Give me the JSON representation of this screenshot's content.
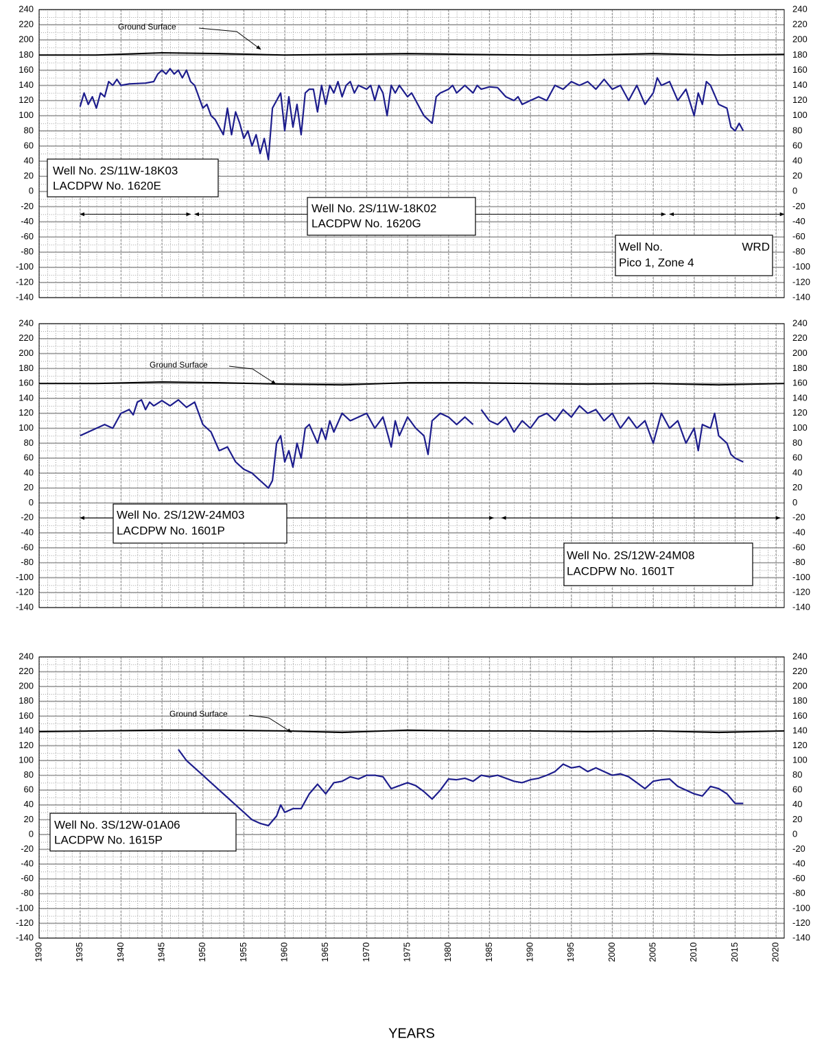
{
  "chart_data": [
    {
      "type": "line",
      "xlim": [
        1930,
        2021
      ],
      "ylim": [
        -140,
        240
      ],
      "xticks": [
        1930,
        1935,
        1940,
        1945,
        1950,
        1955,
        1960,
        1965,
        1970,
        1975,
        1980,
        1985,
        1990,
        1995,
        2000,
        2005,
        2010,
        2015,
        2020
      ],
      "yticks": [
        -140,
        -120,
        -100,
        -80,
        -60,
        -40,
        -20,
        0,
        20,
        40,
        60,
        80,
        100,
        120,
        140,
        160,
        180,
        200,
        220,
        240
      ],
      "grid": true,
      "color": "#1c1c8c",
      "x": [
        1935,
        1935.5,
        1936,
        1936.5,
        1937,
        1937.5,
        1938,
        1938.5,
        1939,
        1939.5,
        1940,
        1941,
        1943,
        1944,
        1944.5,
        1945,
        1945.5,
        1946,
        1946.5,
        1947,
        1947.5,
        1948,
        1948.5,
        1949,
        1949.5,
        1950,
        1950.5,
        1951,
        1951.5,
        1952,
        1952.5,
        1953,
        1953.5,
        1954,
        1954.5,
        1955,
        1955.5,
        1956,
        1956.5,
        1957,
        1957.5,
        1958,
        1958.5,
        1959,
        1959.5,
        1960,
        1960.5,
        1961,
        1961.5,
        1962,
        1962.5,
        1963,
        1963.5,
        1964,
        1964.5,
        1965,
        1965.5,
        1966,
        1966.5,
        1967,
        1967.5,
        1968,
        1968.5,
        1969,
        1970,
        1970.5,
        1971,
        1971.5,
        1972,
        1972.5,
        1973,
        1973.5,
        1974,
        1975,
        1975.5,
        1976,
        1976.5,
        1977,
        1977.5,
        1978,
        1978.5,
        1979,
        1980,
        1980.5,
        1981,
        1982,
        1983,
        1983.5,
        1984,
        1985,
        1986,
        1987,
        1988,
        1988.5,
        1989,
        1990,
        1991,
        1992,
        1993,
        1994,
        1995,
        1996,
        1997,
        1998,
        1999,
        2000,
        2001,
        2002,
        2003,
        2004,
        2005,
        2005.5,
        2006,
        2007,
        2008,
        2009,
        2010,
        2010.5,
        2011,
        2011.5,
        2012,
        2013,
        2014,
        2014.5,
        2015,
        2015.5,
        2016
      ],
      "values": [
        112,
        130,
        115,
        125,
        110,
        130,
        125,
        145,
        140,
        148,
        140,
        142,
        143,
        145,
        155,
        160,
        155,
        162,
        155,
        160,
        150,
        160,
        145,
        140,
        125,
        110,
        115,
        100,
        95,
        85,
        75,
        110,
        75,
        105,
        90,
        70,
        80,
        60,
        75,
        50,
        70,
        42,
        110,
        120,
        130,
        80,
        125,
        85,
        115,
        75,
        130,
        135,
        135,
        105,
        140,
        115,
        140,
        130,
        145,
        125,
        140,
        145,
        130,
        140,
        135,
        140,
        120,
        140,
        130,
        100,
        140,
        130,
        140,
        125,
        130,
        120,
        110,
        100,
        95,
        90,
        125,
        130,
        135,
        140,
        130,
        140,
        130,
        140,
        135,
        138,
        137,
        125,
        120,
        125,
        115,
        120,
        125,
        120,
        140,
        135,
        145,
        140,
        145,
        135,
        148,
        135,
        140,
        120,
        140,
        115,
        130,
        150,
        140,
        145,
        120,
        135,
        100,
        130,
        115,
        145,
        140,
        115,
        110,
        85,
        80,
        90,
        80
      ],
      "ground_x": [
        1930,
        1937,
        1945,
        1952,
        1960,
        1967,
        1975,
        1982,
        1990,
        1997,
        2005,
        2013,
        2021
      ],
      "ground_values": [
        180,
        180,
        183,
        182,
        180,
        181,
        182,
        181,
        180,
        180,
        182,
        180,
        181
      ],
      "ground_label": "Ground Surface",
      "periods": [
        [
          1935,
          1948.5
        ],
        [
          1949,
          2006.5
        ],
        [
          2007,
          2021
        ]
      ],
      "period_level": -30,
      "labels": [
        [
          "Well No. 2S/11W-18K03",
          "LACDPW No. 1620E"
        ],
        [
          "Well No. 2S/11W-18K02",
          "LACDPW No. 1620G"
        ],
        [
          "Well No.",
          "WRD",
          "Pico 1, Zone 4"
        ]
      ]
    },
    {
      "type": "line",
      "xlim": [
        1930,
        2021
      ],
      "ylim": [
        -140,
        240
      ],
      "xticks": [
        1930,
        1935,
        1940,
        1945,
        1950,
        1955,
        1960,
        1965,
        1970,
        1975,
        1980,
        1985,
        1990,
        1995,
        2000,
        2005,
        2010,
        2015,
        2020
      ],
      "yticks": [
        -140,
        -120,
        -100,
        -80,
        -60,
        -40,
        -20,
        0,
        20,
        40,
        60,
        80,
        100,
        120,
        140,
        160,
        180,
        200,
        220,
        240
      ],
      "grid": true,
      "color": "#1c1c8c",
      "x": [
        1935,
        1938,
        1939,
        1940,
        1941,
        1941.5,
        1942,
        1942.5,
        1943,
        1943.5,
        1944,
        1945,
        1946,
        1947,
        1948,
        1949,
        1949.5,
        1950,
        1951,
        1952,
        1953,
        1954,
        1955,
        1956,
        1957,
        1957.5,
        1958,
        1958.5,
        1959,
        1959.5,
        1960,
        1960.5,
        1961,
        1961.5,
        1962,
        1962.5,
        1963,
        1964,
        1964.5,
        1965,
        1965.5,
        1966,
        1967,
        1968,
        1969,
        1970,
        1971,
        1972,
        1973,
        1973.5,
        1974,
        1975,
        1976,
        1977,
        1977.5,
        1978,
        1979,
        1980,
        1981,
        1982,
        1983,
        1983.5,
        1984,
        1985,
        1986,
        1987,
        1988,
        1989,
        1990,
        1991,
        1992,
        1993,
        1994,
        1995,
        1996,
        1997,
        1998,
        1999,
        2000,
        2001,
        2002,
        2003,
        2004,
        2005,
        2006,
        2007,
        2008,
        2009,
        2010,
        2010.5,
        2011,
        2012,
        2012.5,
        2013,
        2014,
        2014.5,
        2015,
        2016
      ],
      "values": [
        90,
        105,
        100,
        120,
        125,
        118,
        135,
        138,
        125,
        135,
        130,
        137,
        130,
        138,
        128,
        135,
        120,
        105,
        95,
        70,
        75,
        55,
        45,
        40,
        30,
        25,
        20,
        30,
        80,
        90,
        55,
        70,
        48,
        80,
        60,
        100,
        105,
        80,
        100,
        85,
        110,
        95,
        120,
        110,
        115,
        120,
        100,
        115,
        75,
        110,
        90,
        115,
        100,
        90,
        65,
        110,
        120,
        115,
        105,
        115,
        105,
        null,
        125,
        110,
        105,
        115,
        95,
        110,
        100,
        115,
        120,
        110,
        125,
        115,
        130,
        120,
        125,
        110,
        120,
        100,
        115,
        100,
        110,
        80,
        120,
        100,
        110,
        80,
        100,
        70,
        105,
        100,
        120,
        90,
        80,
        65,
        60,
        55
      ],
      "ground_x": [
        1930,
        1937,
        1945,
        1952,
        1960,
        1967,
        1975,
        1982,
        1990,
        1997,
        2005,
        2013,
        2021
      ],
      "ground_values": [
        160,
        160,
        162,
        161,
        159,
        158,
        161,
        161,
        160,
        159,
        160,
        158,
        160
      ],
      "ground_label": "Ground Surface",
      "periods": [
        [
          1935,
          1985.5
        ],
        [
          1986.5,
          2020.5
        ]
      ],
      "period_level": -20,
      "labels": [
        [
          "Well No. 2S/12W-24M03",
          "LACDPW No. 1601P"
        ],
        [
          "Well No. 2S/12W-24M08",
          "LACDPW No. 1601T"
        ]
      ]
    },
    {
      "type": "line",
      "xlim": [
        1930,
        2021
      ],
      "ylim": [
        -140,
        240
      ],
      "xticks": [
        1930,
        1935,
        1940,
        1945,
        1950,
        1955,
        1960,
        1965,
        1970,
        1975,
        1980,
        1985,
        1990,
        1995,
        2000,
        2005,
        2010,
        2015,
        2020
      ],
      "yticks": [
        -140,
        -120,
        -100,
        -80,
        -60,
        -40,
        -20,
        0,
        20,
        40,
        60,
        80,
        100,
        120,
        140,
        160,
        180,
        200,
        220,
        240
      ],
      "grid": true,
      "color": "#1c1c8c",
      "x": [
        1947,
        1948,
        1949,
        1950,
        1951,
        1952,
        1953,
        1954,
        1955,
        1956,
        1957,
        1958,
        1959,
        1959.5,
        1960,
        1961,
        1962,
        1963,
        1964,
        1965,
        1966,
        1967,
        1968,
        1969,
        1970,
        1971,
        1972,
        1973,
        1974,
        1975,
        1976,
        1977,
        1978,
        1979,
        1980,
        1981,
        1982,
        1983,
        1984,
        1985,
        1986,
        1987,
        1988,
        1989,
        1990,
        1991,
        1992,
        1993,
        1994,
        1995,
        1996,
        1997,
        1998,
        1999,
        2000,
        2001,
        2002,
        2003,
        2004,
        2005,
        2006,
        2007,
        2008,
        2009,
        2010,
        2011,
        2012,
        2013,
        2014,
        2015,
        2016
      ],
      "values": [
        115,
        100,
        90,
        80,
        70,
        60,
        50,
        40,
        30,
        20,
        15,
        12,
        25,
        40,
        30,
        35,
        35,
        55,
        68,
        55,
        70,
        72,
        78,
        75,
        80,
        80,
        78,
        62,
        66,
        70,
        66,
        58,
        48,
        60,
        75,
        74,
        76,
        72,
        80,
        78,
        80,
        76,
        72,
        70,
        74,
        76,
        80,
        85,
        95,
        90,
        92,
        85,
        90,
        85,
        80,
        82,
        78,
        70,
        62,
        72,
        74,
        75,
        65,
        60,
        55,
        52,
        65,
        62,
        55,
        42,
        42
      ],
      "ground_x": [
        1930,
        1937,
        1945,
        1952,
        1960,
        1967,
        1975,
        1982,
        1990,
        1997,
        2005,
        2013,
        2021
      ],
      "ground_values": [
        139,
        140,
        141,
        141,
        140,
        138,
        141,
        140,
        140,
        139,
        140,
        138,
        140
      ],
      "ground_label": "Ground Surface",
      "labels": [
        [
          "Well No. 3S/12W-01A06",
          "LACDPW No. 1615P"
        ]
      ],
      "xlabel": "YEARS"
    }
  ]
}
